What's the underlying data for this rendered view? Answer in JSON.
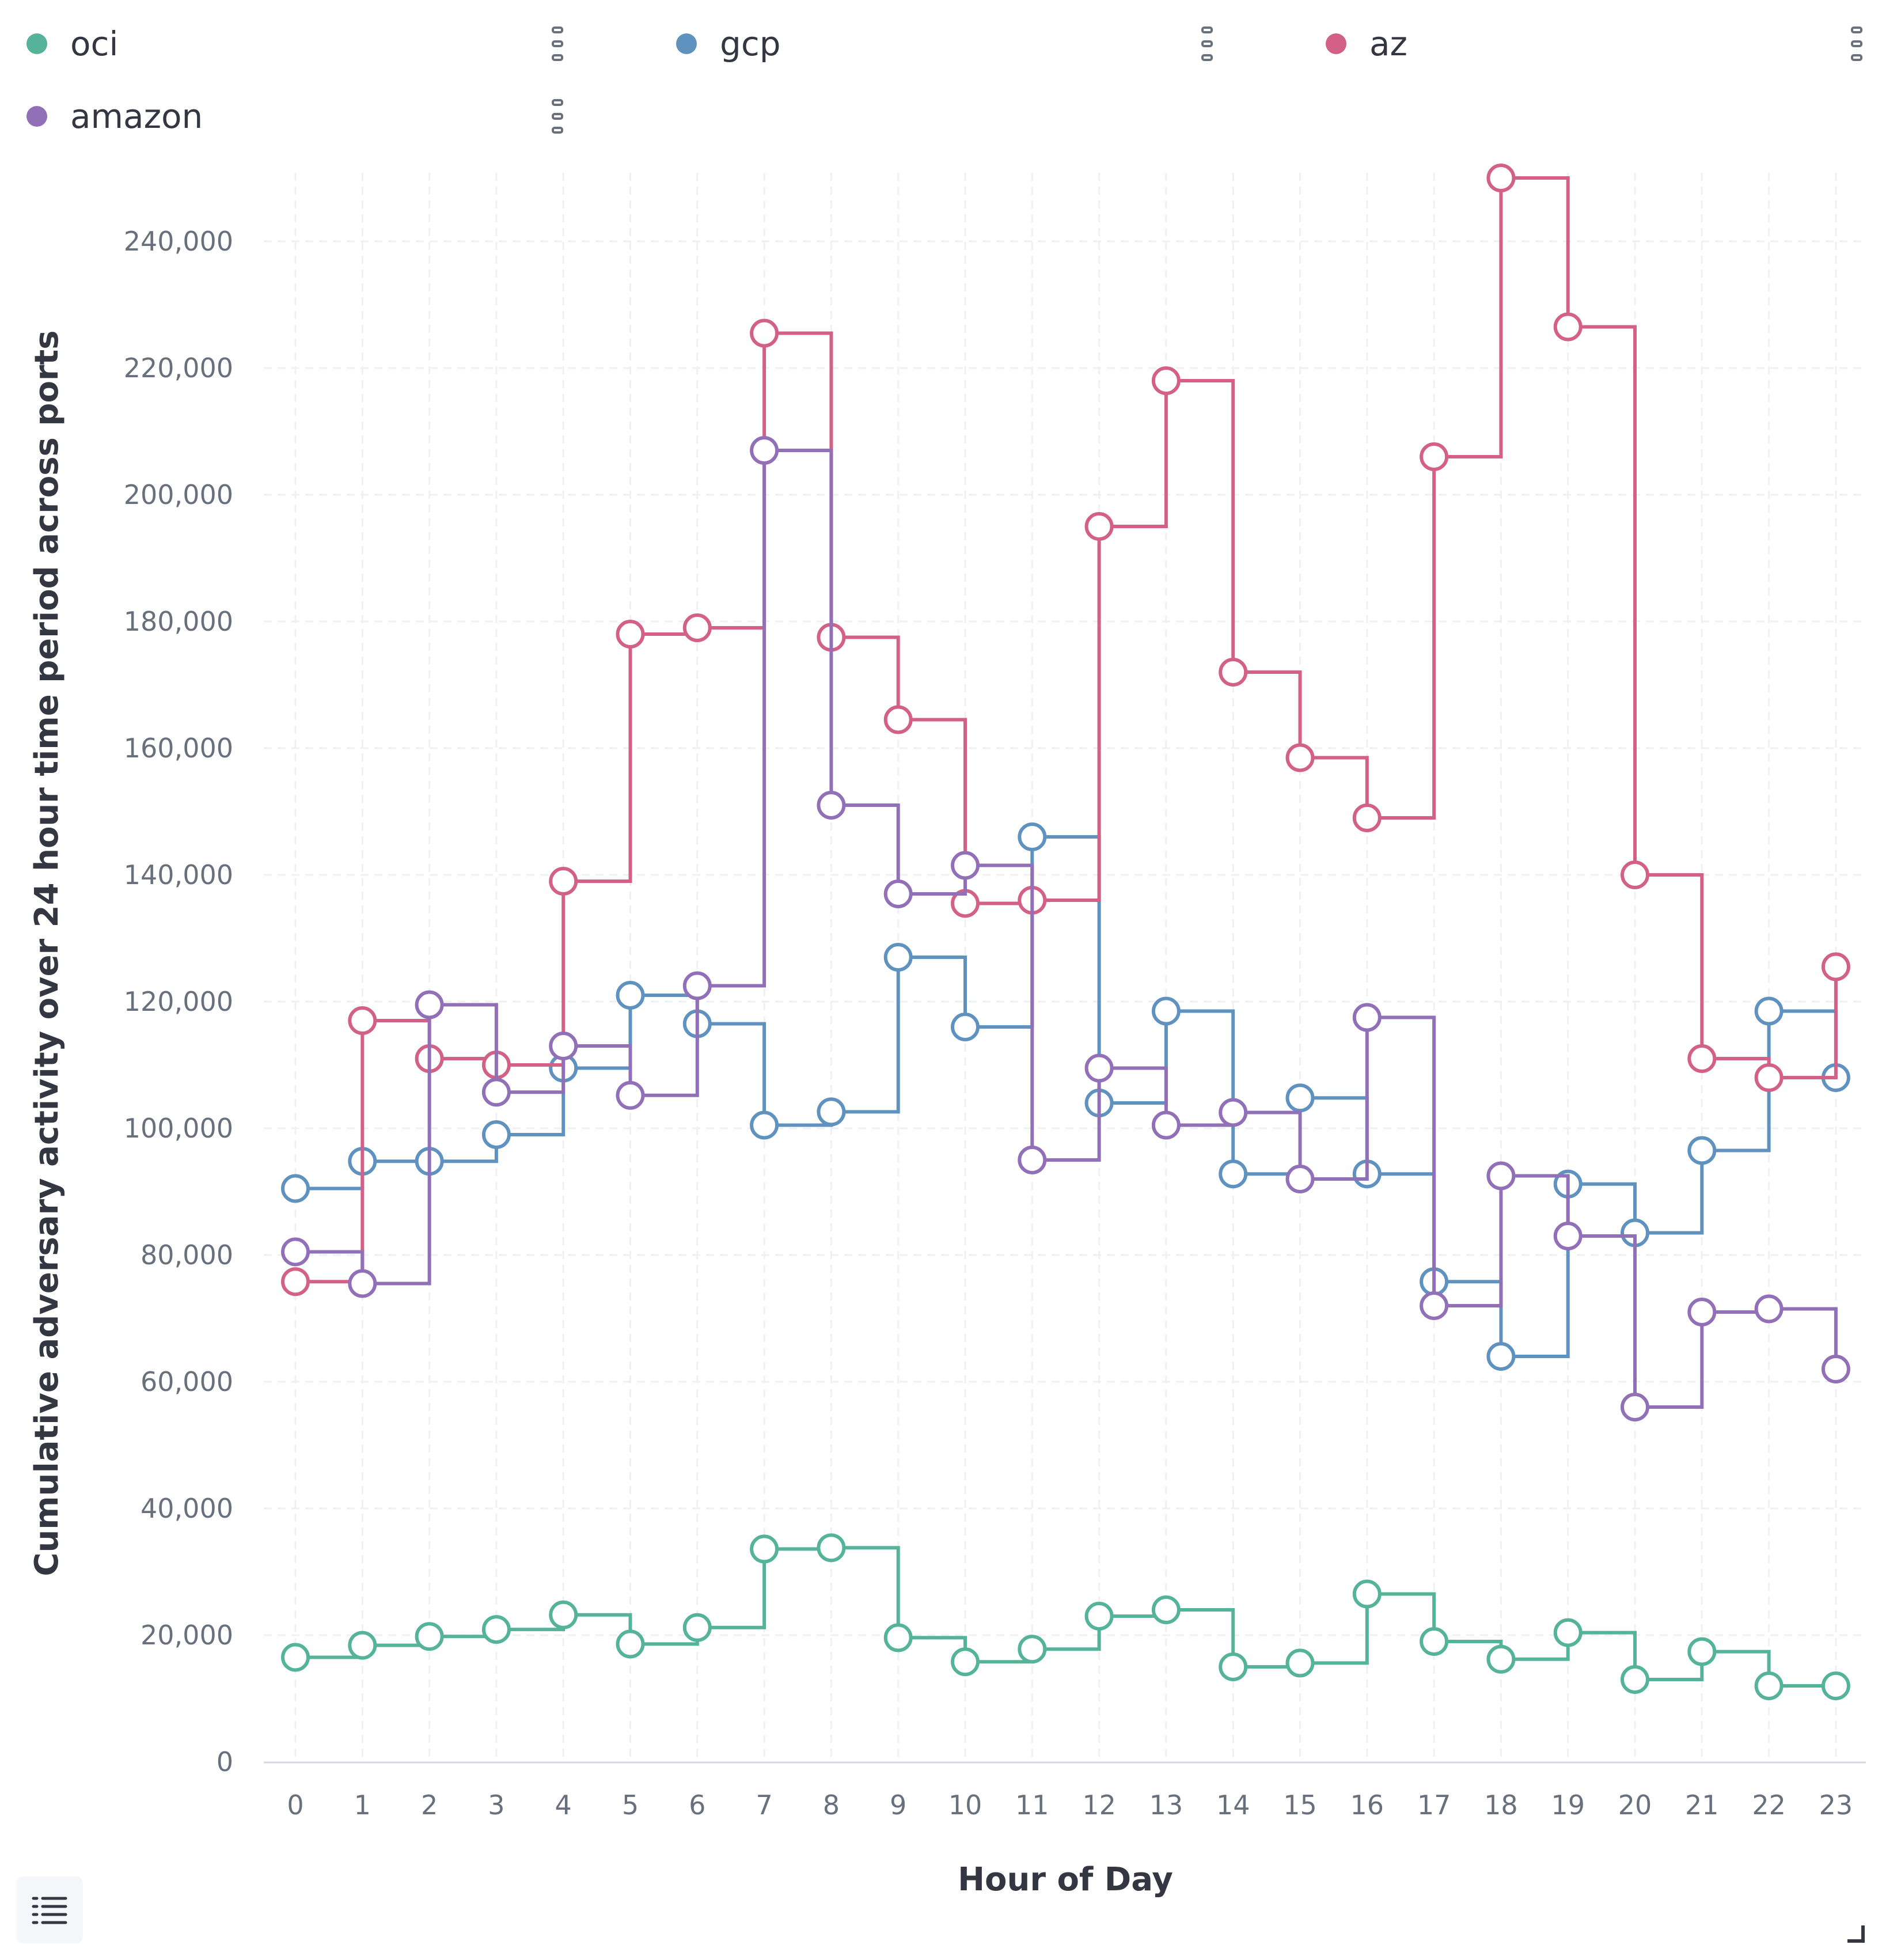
{
  "chart_data": {
    "type": "line",
    "interpolation": "step-after",
    "title": "",
    "xlabel": "Hour of Day",
    "ylabel": "Cumulative adversary activity over 24 hour time period across ports",
    "x": [
      0,
      1,
      2,
      3,
      4,
      5,
      6,
      7,
      8,
      9,
      10,
      11,
      12,
      13,
      14,
      15,
      16,
      17,
      18,
      19,
      20,
      21,
      22,
      23
    ],
    "xlim": [
      0,
      23
    ],
    "ylim": [
      0,
      250000
    ],
    "yticks": [
      0,
      20000,
      40000,
      60000,
      80000,
      100000,
      120000,
      140000,
      160000,
      180000,
      200000,
      220000,
      240000
    ],
    "ytick_labels": [
      "0",
      "20,000",
      "40,000",
      "60,000",
      "80,000",
      "100,000",
      "120,000",
      "140,000",
      "160,000",
      "180,000",
      "200,000",
      "220,000",
      "240,000"
    ],
    "xtick_labels": [
      "0",
      "1",
      "2",
      "3",
      "4",
      "5",
      "6",
      "7",
      "8",
      "9",
      "10",
      "11",
      "12",
      "13",
      "14",
      "15",
      "16",
      "17",
      "18",
      "19",
      "20",
      "21",
      "22",
      "23"
    ],
    "grid": true,
    "legend_position": "top",
    "series": [
      {
        "name": "oci",
        "color": "#54b399",
        "values": [
          16500,
          18400,
          19800,
          20900,
          23200,
          18600,
          21200,
          33600,
          33800,
          19600,
          15800,
          17800,
          23000,
          24000,
          15000,
          15600,
          26500,
          19000,
          16200,
          20400,
          13000,
          17400,
          12000,
          12000
        ]
      },
      {
        "name": "gcp",
        "color": "#6092c0",
        "values": [
          90500,
          94800,
          94800,
          99000,
          109500,
          121000,
          116500,
          100500,
          102600,
          127000,
          116000,
          146000,
          104000,
          118500,
          92800,
          104800,
          92800,
          75800,
          64000,
          91200,
          83500,
          96500,
          118500,
          108000
        ]
      },
      {
        "name": "az",
        "color": "#d36086",
        "values": [
          75800,
          117000,
          111000,
          110000,
          139000,
          178000,
          179000,
          225500,
          177500,
          164500,
          135500,
          136000,
          195000,
          218000,
          172000,
          158500,
          149000,
          206000,
          250000,
          226500,
          140000,
          111000,
          108000,
          125500
        ]
      },
      {
        "name": "amazon",
        "color": "#9170b8",
        "values": [
          80500,
          75500,
          119500,
          105700,
          113000,
          105200,
          122500,
          207000,
          151000,
          137000,
          141500,
          95000,
          109500,
          100500,
          102500,
          92000,
          117500,
          72000,
          92500,
          83000,
          56000,
          71000,
          71500,
          62000
        ]
      }
    ]
  }
}
